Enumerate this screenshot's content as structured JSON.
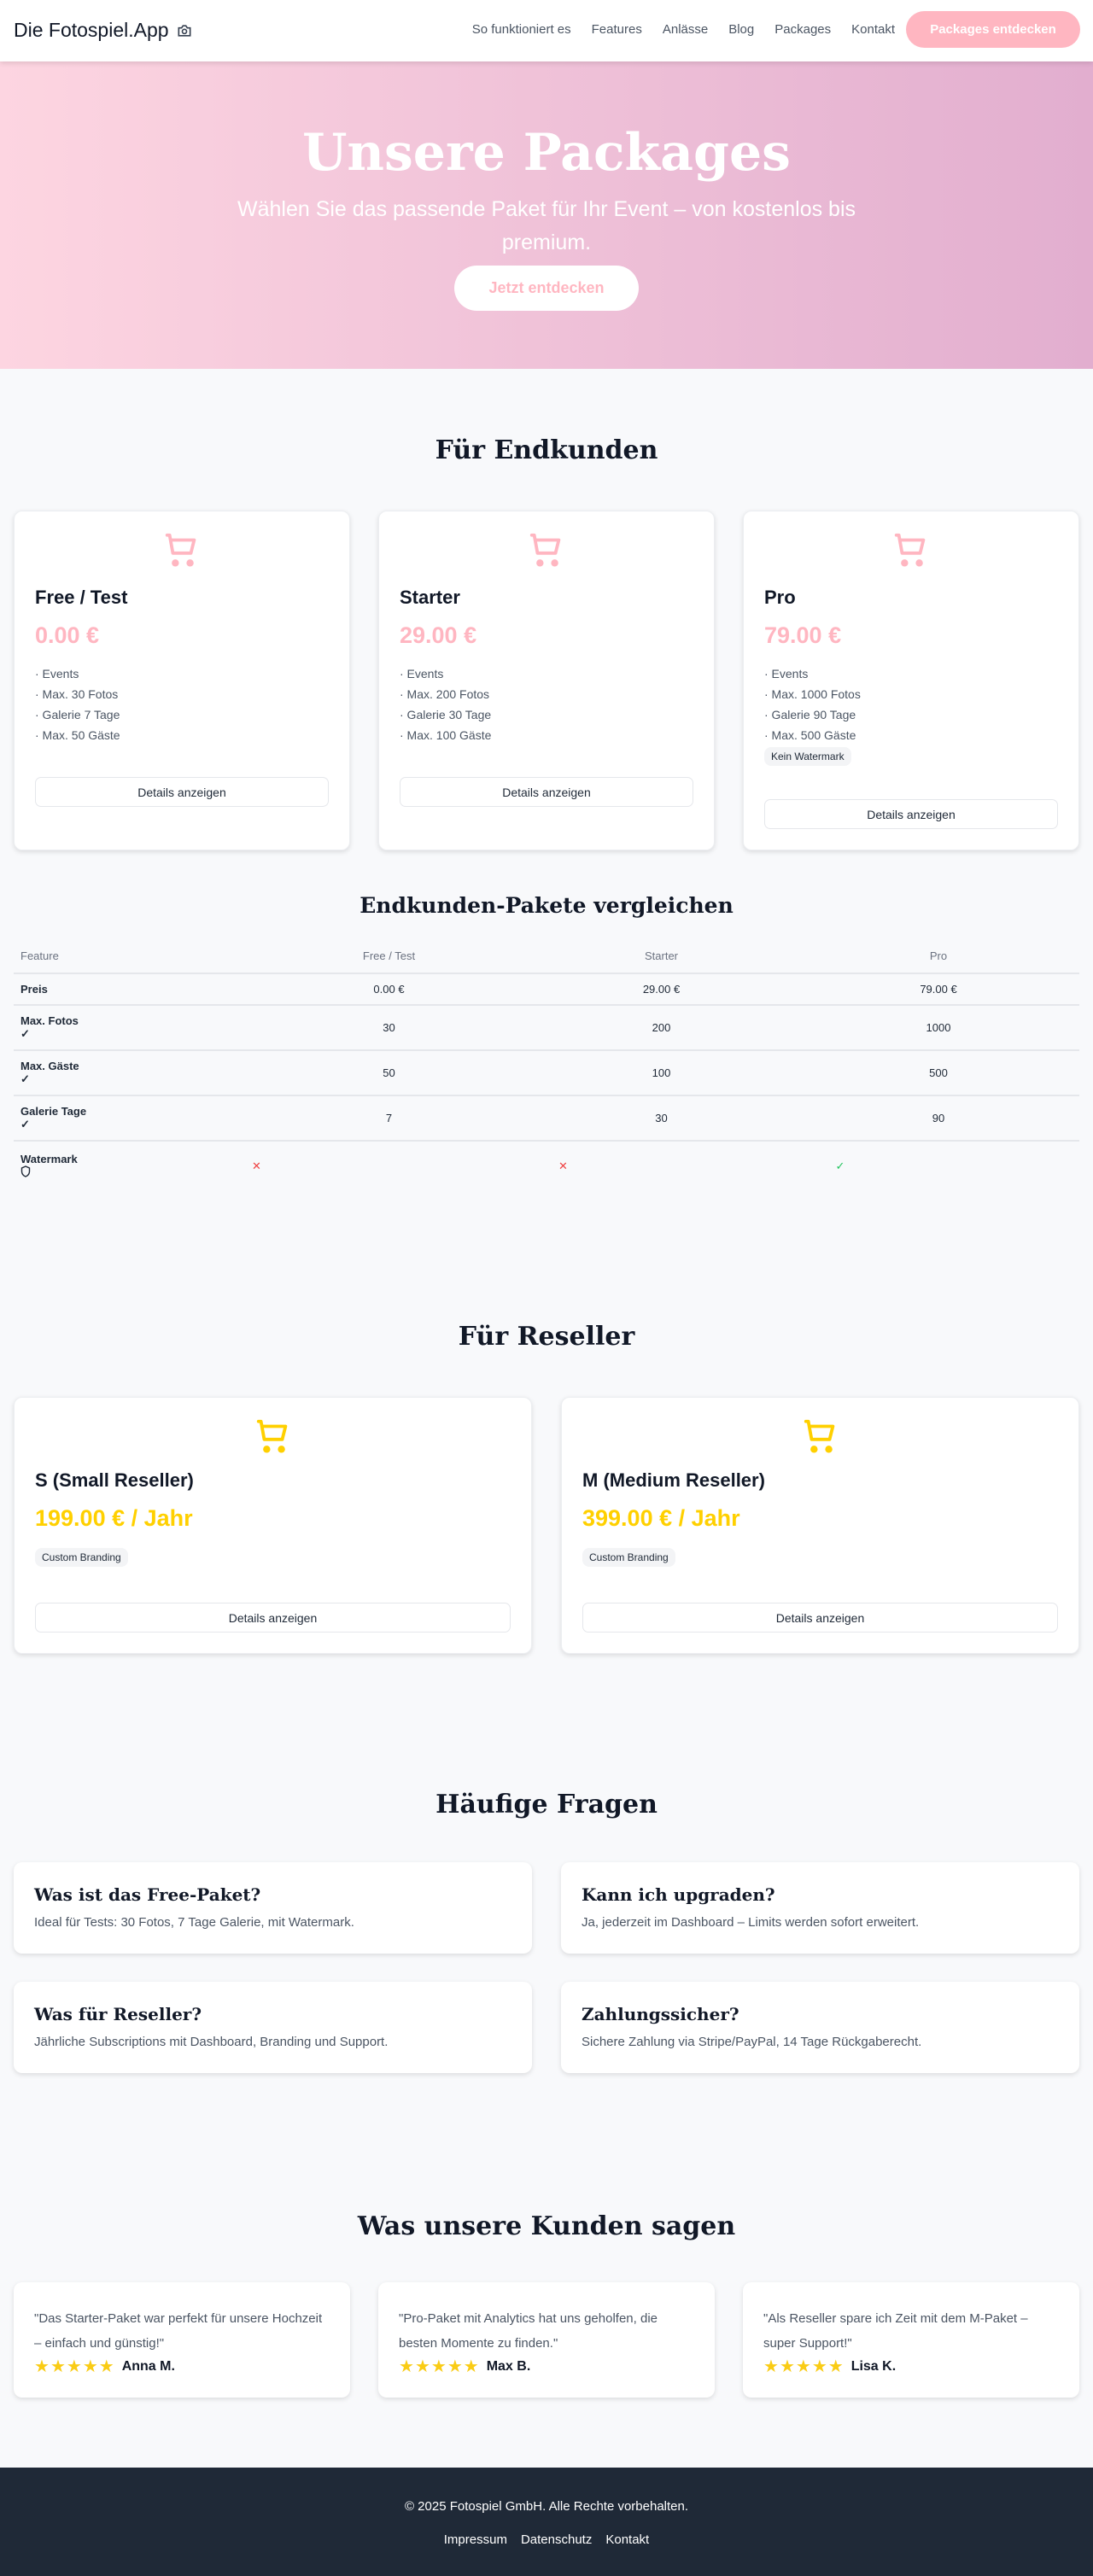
{
  "header": {
    "logo": "Die Fotospiel.App",
    "nav": [
      "So funktioniert es",
      "Features",
      "Anlässe",
      "Blog",
      "Packages",
      "Kontakt"
    ],
    "cta": "Packages entdecken"
  },
  "hero": {
    "title": "Unsere Packages",
    "subtitle": "Wählen Sie das passende Paket für Ihr Event – von kostenlos bis premium.",
    "cta": "Jetzt entdecken"
  },
  "colors": {
    "pink": "#ffb6c1",
    "yellow": "#ffd000",
    "footer": "#1f2937",
    "cross": "#ef4444",
    "check": "#22c55e"
  },
  "endkunden": {
    "title": "Für Endkunden",
    "details": "Details anzeigen",
    "packages": [
      {
        "name": "Free / Test",
        "price": "0.00 €",
        "features": [
          "· Events",
          "· Max. 30 Fotos",
          "· Galerie 7 Tage",
          "· Max. 50 Gäste"
        ]
      },
      {
        "name": "Starter",
        "price": "29.00 €",
        "features": [
          "· Events",
          "· Max. 200 Fotos",
          "· Galerie 30 Tage",
          "· Max. 100 Gäste"
        ]
      },
      {
        "name": "Pro",
        "price": "79.00 €",
        "features": [
          "· Events",
          "· Max. 1000 Fotos",
          "· Galerie 90 Tage",
          "· Max. 500 Gäste"
        ],
        "badge": "Kein Watermark"
      }
    ]
  },
  "compare": {
    "title": "Endkunden-Pakete vergleichen",
    "headers": [
      "Feature",
      "Free / Test",
      "Starter",
      "Pro"
    ],
    "rows": [
      {
        "feature": "Preis",
        "values": [
          "0.00 €",
          "29.00 €",
          "79.00 €"
        ]
      },
      {
        "feature": "Max. Fotos",
        "icon": "check-icon",
        "values": [
          "30",
          "200",
          "1000"
        ]
      },
      {
        "feature": "Max. Gäste",
        "icon": "check-icon",
        "values": [
          "50",
          "100",
          "500"
        ]
      },
      {
        "feature": "Galerie Tage",
        "icon": "check-icon",
        "values": [
          "7",
          "30",
          "90"
        ]
      },
      {
        "feature": "Watermark",
        "icon": "shield-icon",
        "values": [
          "✕",
          "✕",
          "✓"
        ]
      }
    ]
  },
  "reseller": {
    "title": "Für Reseller",
    "details": "Details anzeigen",
    "packages": [
      {
        "name": "S (Small Reseller)",
        "price": "199.00 € / Jahr",
        "badge": "Custom Branding"
      },
      {
        "name": "M (Medium Reseller)",
        "price": "399.00 € / Jahr",
        "badge": "Custom Branding"
      }
    ]
  },
  "faq": {
    "title": "Häufige Fragen",
    "items": [
      {
        "q": "Was ist das Free-Paket?",
        "a": "Ideal für Tests: 30 Fotos, 7 Tage Galerie, mit Watermark."
      },
      {
        "q": "Kann ich upgraden?",
        "a": "Ja, jederzeit im Dashboard – Limits werden sofort erweitert."
      },
      {
        "q": "Was für Reseller?",
        "a": "Jährliche Subscriptions mit Dashboard, Branding und Support."
      },
      {
        "q": "Zahlungssicher?",
        "a": "Sichere Zahlung via Stripe/PayPal, 14 Tage Rückgaberecht."
      }
    ]
  },
  "testimonials": {
    "title": "Was unsere Kunden sagen",
    "items": [
      {
        "quote": "\"Das Starter-Paket war perfekt für unsere Hochzeit – einfach und günstig!\"",
        "name": "Anna M.",
        "rating": 5
      },
      {
        "quote": "\"Pro-Paket mit Analytics hat uns geholfen, die besten Momente zu finden.\"",
        "name": "Max B.",
        "rating": 5
      },
      {
        "quote": "\"Als Reseller spare ich Zeit mit dem M-Paket – super Support!\"",
        "name": "Lisa K.",
        "rating": 5
      }
    ]
  },
  "footer": {
    "copyright": "© 2025 Fotospiel GmbH. Alle Rechte vorbehalten.",
    "links": [
      "Impressum",
      "Datenschutz",
      "Kontakt"
    ]
  }
}
